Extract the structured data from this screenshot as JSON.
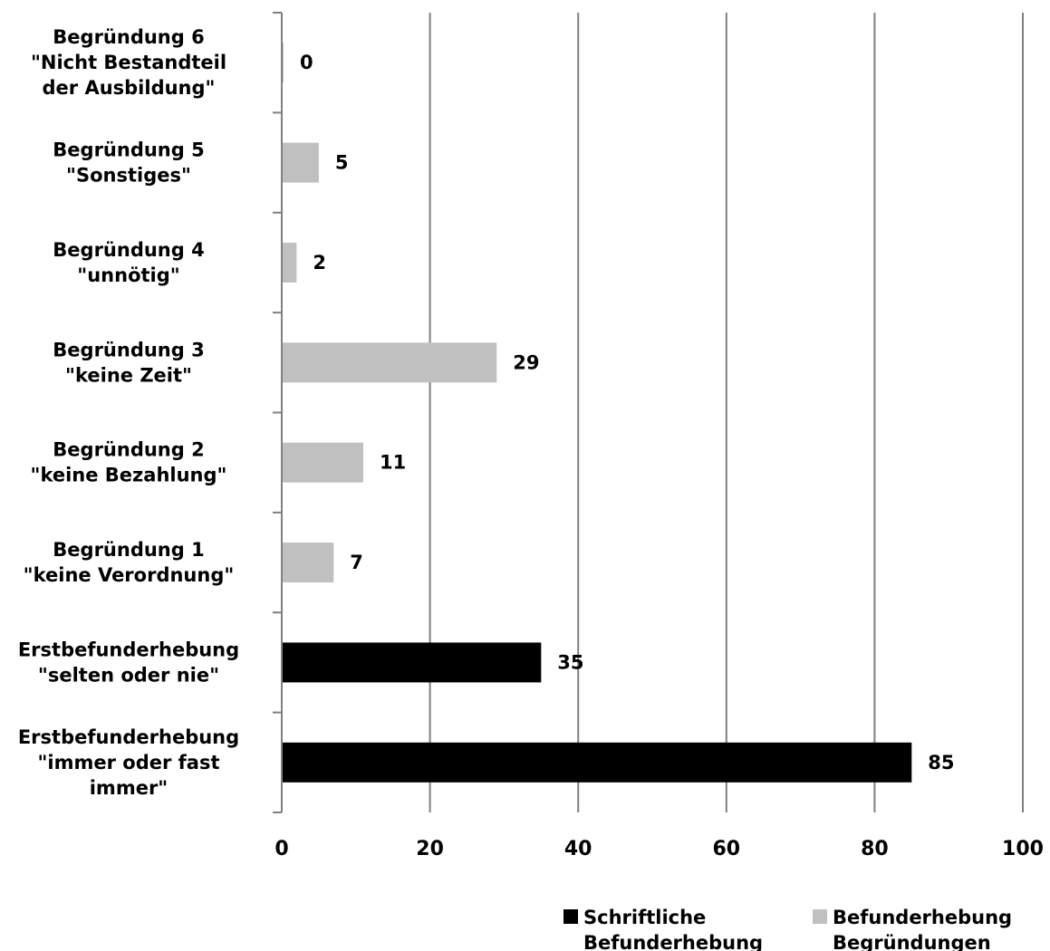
{
  "chart_data": {
    "type": "bar",
    "orientation": "horizontal",
    "categories": [
      [
        "Begründung 6",
        "\"Nicht Bestandteil",
        "der Ausbildung\""
      ],
      [
        "Begründung 5",
        "\"Sonstiges\""
      ],
      [
        "Begründung 4",
        "\"unnötig\""
      ],
      [
        "Begründung 3",
        "\"keine Zeit\""
      ],
      [
        "Begründung 2",
        "\"keine Bezahlung\""
      ],
      [
        "Begründung 1",
        "\"keine Verordnung\""
      ],
      [
        "Erstbefunderhebung",
        "\"selten oder nie\""
      ],
      [
        "Erstbefunderhebung",
        "\"immer oder fast",
        "immer\""
      ]
    ],
    "values": [
      0,
      5,
      2,
      29,
      11,
      7,
      35,
      85
    ],
    "value_labels": [
      "0",
      "5",
      "2",
      "29",
      "11",
      "7",
      "35",
      "85"
    ],
    "series_index": [
      1,
      1,
      1,
      1,
      1,
      1,
      0,
      0
    ],
    "series": [
      {
        "name": [
          "Schriftliche",
          "Befunderhebung"
        ],
        "color": "#000000"
      },
      {
        "name": [
          "Befunderhebung",
          "Begründungen"
        ],
        "color": "#c0c0c0"
      }
    ],
    "xlim": [
      0,
      100
    ],
    "xticks": [
      0,
      20,
      40,
      60,
      80,
      100
    ],
    "xtick_labels": [
      "0",
      "20",
      "40",
      "60",
      "80",
      "100"
    ],
    "grid": "vertical",
    "gridline_color": "#808080",
    "legend_position": "bottom-right",
    "title": "",
    "xlabel": "",
    "ylabel": ""
  }
}
